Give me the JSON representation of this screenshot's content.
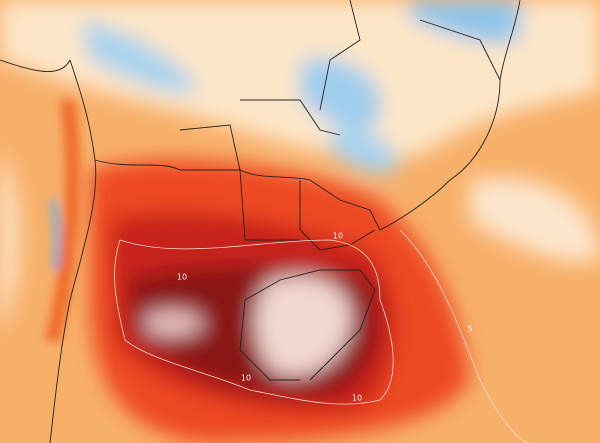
{
  "contour_labels": [
    "10",
    "10",
    "10",
    "10",
    "5"
  ]
}
